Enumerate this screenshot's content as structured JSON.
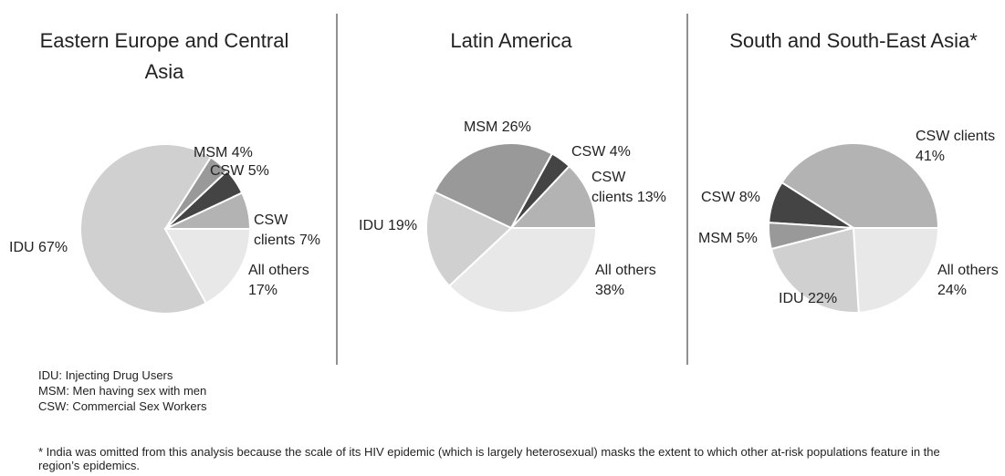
{
  "chart_data": [
    {
      "type": "pie",
      "title": "Eastern Europe and Central Asia",
      "categories": [
        "CSW clients",
        "CSW",
        "MSM",
        "IDU",
        "All others"
      ],
      "values": [
        7,
        5,
        4,
        67,
        17
      ],
      "value_labels": [
        "7%",
        "5%",
        "4%",
        "67%",
        "17%"
      ],
      "colors": [
        "#b3b3b3",
        "#444444",
        "#999999",
        "#d0d0d0",
        "#e8e8e8"
      ]
    },
    {
      "type": "pie",
      "title": "Latin America",
      "categories": [
        "CSW clients",
        "CSW",
        "MSM",
        "IDU",
        "All others"
      ],
      "values": [
        13,
        4,
        26,
        19,
        38
      ],
      "value_labels": [
        "13%",
        "4%",
        "26%",
        "19%",
        "38%"
      ],
      "colors": [
        "#b3b3b3",
        "#444444",
        "#999999",
        "#d0d0d0",
        "#e8e8e8"
      ]
    },
    {
      "type": "pie",
      "title": "South and South-East Asia*",
      "categories": [
        "CSW clients",
        "CSW",
        "MSM",
        "IDU",
        "All others"
      ],
      "values": [
        41,
        8,
        5,
        22,
        24
      ],
      "value_labels": [
        "41%",
        "8%",
        "5%",
        "22%",
        "24%"
      ],
      "colors": [
        "#b3b3b3",
        "#444444",
        "#999999",
        "#d0d0d0",
        "#e8e8e8"
      ]
    }
  ],
  "notes": [
    "IDU: Injecting Drug Users",
    "MSM: Men having sex with men",
    "CSW: Commercial Sex Workers"
  ],
  "footnote": "* India was omitted from this analysis because the scale of its HIV epidemic (which is largely heterosexual) masks the extent to which other at-risk populations feature in the region’s epidemics."
}
